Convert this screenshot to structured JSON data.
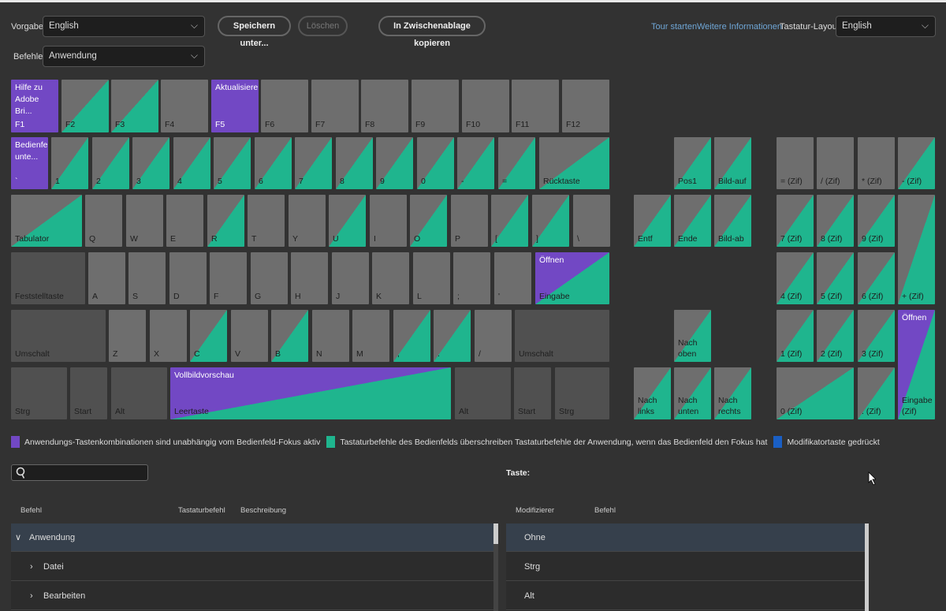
{
  "toolbar": {
    "preset_label": "Vorgabe:",
    "preset_value": "English",
    "commands_label": "Befehle:",
    "commands_value": "Anwendung",
    "save_as": "Speichern unter...",
    "delete": "Löschen",
    "copy_clipboard": "In Zwischenablage kopieren",
    "tour": "Tour starten",
    "more_info": "Weitere Informationen",
    "layout_label": "Tastatur-Layout:",
    "layout_value": "English"
  },
  "colors": {
    "app": "#7248c4",
    "panel": "#1fb58e",
    "modifier": "#1a5fc4",
    "key": "#6e6e6e",
    "key_dark": "#505050"
  },
  "keys": [
    {
      "k": "F1",
      "a": "Hilfe zu Adobe Bri...",
      "s": "purple"
    },
    {
      "k": "F2",
      "s": "green"
    },
    {
      "k": "F3",
      "s": "green"
    },
    {
      "k": "F4",
      "s": "none"
    },
    {
      "k": "F5",
      "a": "Aktualisieren",
      "s": "purple"
    },
    {
      "k": "F6",
      "s": "none"
    },
    {
      "k": "F7",
      "s": "none"
    },
    {
      "k": "F8",
      "s": "none"
    },
    {
      "k": "F9",
      "s": "none"
    },
    {
      "k": "F10",
      "s": "none"
    },
    {
      "k": "F11",
      "s": "none"
    },
    {
      "k": "F12",
      "s": "none"
    },
    {
      "k": "`",
      "a": "Bedienfeld unte...",
      "s": "purple"
    },
    {
      "k": "1",
      "s": "green"
    },
    {
      "k": "2",
      "s": "green"
    },
    {
      "k": "3",
      "s": "green"
    },
    {
      "k": "4",
      "s": "green"
    },
    {
      "k": "5",
      "s": "green"
    },
    {
      "k": "6",
      "s": "green"
    },
    {
      "k": "7",
      "s": "green"
    },
    {
      "k": "8",
      "s": "green"
    },
    {
      "k": "9",
      "s": "green"
    },
    {
      "k": "0",
      "s": "green"
    },
    {
      "k": "-",
      "s": "green"
    },
    {
      "k": "=",
      "s": "green"
    },
    {
      "k": "Rücktaste",
      "s": "green"
    },
    {
      "k": "Tabulator",
      "s": "green"
    },
    {
      "k": "Q",
      "s": "none"
    },
    {
      "k": "W",
      "s": "none"
    },
    {
      "k": "E",
      "s": "none"
    },
    {
      "k": "R",
      "s": "green"
    },
    {
      "k": "T",
      "s": "none"
    },
    {
      "k": "Y",
      "s": "none"
    },
    {
      "k": "U",
      "s": "green"
    },
    {
      "k": "I",
      "s": "none"
    },
    {
      "k": "O",
      "s": "green"
    },
    {
      "k": "P",
      "s": "none"
    },
    {
      "k": "[",
      "s": "green"
    },
    {
      "k": "]",
      "s": "green"
    },
    {
      "k": "\\",
      "s": "none"
    },
    {
      "k": "Feststelltaste",
      "s": "dark"
    },
    {
      "k": "A",
      "s": "none"
    },
    {
      "k": "S",
      "s": "none"
    },
    {
      "k": "D",
      "s": "none"
    },
    {
      "k": "F",
      "s": "none"
    },
    {
      "k": "G",
      "s": "none"
    },
    {
      "k": "H",
      "s": "none"
    },
    {
      "k": "J",
      "s": "none"
    },
    {
      "k": "K",
      "s": "none"
    },
    {
      "k": "L",
      "s": "none"
    },
    {
      "k": ";",
      "s": "none"
    },
    {
      "k": "'",
      "s": "none"
    },
    {
      "k": "Eingabe",
      "a": "Öffnen",
      "s": "pg"
    },
    {
      "k": "Umschalt",
      "s": "dark"
    },
    {
      "k": "Z",
      "s": "none"
    },
    {
      "k": "X",
      "s": "none"
    },
    {
      "k": "C",
      "s": "green"
    },
    {
      "k": "V",
      "s": "none"
    },
    {
      "k": "B",
      "s": "green"
    },
    {
      "k": "N",
      "s": "none"
    },
    {
      "k": "M",
      "s": "none"
    },
    {
      "k": ",",
      "s": "green"
    },
    {
      "k": ".",
      "s": "green"
    },
    {
      "k": "/",
      "s": "none"
    },
    {
      "k": "Umschalt",
      "s": "dark"
    },
    {
      "k": "Strg",
      "s": "dark"
    },
    {
      "k": "Start",
      "s": "dark"
    },
    {
      "k": "Alt",
      "s": "dark"
    },
    {
      "k": "Leertaste",
      "a": "Vollbildvorschau",
      "s": "pg"
    },
    {
      "k": "Alt",
      "s": "dark"
    },
    {
      "k": "Start",
      "s": "dark"
    },
    {
      "k": "Strg",
      "s": "dark"
    },
    {
      "k": "Pos1",
      "s": "green"
    },
    {
      "k": "Bild-auf",
      "s": "green"
    },
    {
      "k": "Entf",
      "s": "green"
    },
    {
      "k": "Ende",
      "s": "green"
    },
    {
      "k": "Bild-ab",
      "s": "green"
    },
    {
      "k": "Nach oben",
      "s": "green"
    },
    {
      "k": "Nach links",
      "s": "green"
    },
    {
      "k": "Nach unten",
      "s": "green"
    },
    {
      "k": "Nach rechts",
      "s": "green"
    },
    {
      "k": "= (Zif)",
      "s": "none"
    },
    {
      "k": "/ (Zif)",
      "s": "none"
    },
    {
      "k": "* (Zif)",
      "s": "none"
    },
    {
      "k": "- (Zif)",
      "s": "green"
    },
    {
      "k": "7 (Zif)",
      "s": "green"
    },
    {
      "k": "8 (Zif)",
      "s": "green"
    },
    {
      "k": "9 (Zif)",
      "s": "green"
    },
    {
      "k": "+ (Zif)",
      "s": "green"
    },
    {
      "k": "4 (Zif)",
      "s": "green"
    },
    {
      "k": "5 (Zif)",
      "s": "green"
    },
    {
      "k": "6 (Zif)",
      "s": "green"
    },
    {
      "k": "1 (Zif)",
      "s": "green"
    },
    {
      "k": "2 (Zif)",
      "s": "green"
    },
    {
      "k": "3 (Zif)",
      "s": "green"
    },
    {
      "k": "Eingabe (Zif)",
      "a": "Öffnen",
      "s": "pg"
    },
    {
      "k": "0 (Zif)",
      "s": "green"
    },
    {
      "k": ". (Zif)",
      "s": "green"
    }
  ],
  "legend": [
    {
      "text": "Anwendungs-Tastenkombinationen sind unabhängig vom Bedienfeld-Fokus aktiv",
      "color": "#7248c4"
    },
    {
      "text": "Tastaturbefehle des Bedienfelds überschreiben Tastaturbefehle der Anwendung, wenn das Bedienfeld den Fokus hat",
      "color": "#1fb58e"
    },
    {
      "text": "Modifikatortaste gedrückt",
      "color": "#1a5fc4"
    }
  ],
  "search": {
    "value": "",
    "placeholder": ""
  },
  "key_label": "Taste:",
  "commands_table": {
    "headers": [
      "Befehl",
      "Tastaturbefehl",
      "Beschreibung"
    ],
    "rows": [
      {
        "label": "Anwendung",
        "expanded": true
      },
      {
        "label": "Datei",
        "expanded": false
      },
      {
        "label": "Bearbeiten",
        "expanded": false
      }
    ]
  },
  "modifier_table": {
    "headers": [
      "Modifizierer",
      "Befehl"
    ],
    "rows": [
      "Ohne",
      "Strg",
      "Alt"
    ]
  }
}
